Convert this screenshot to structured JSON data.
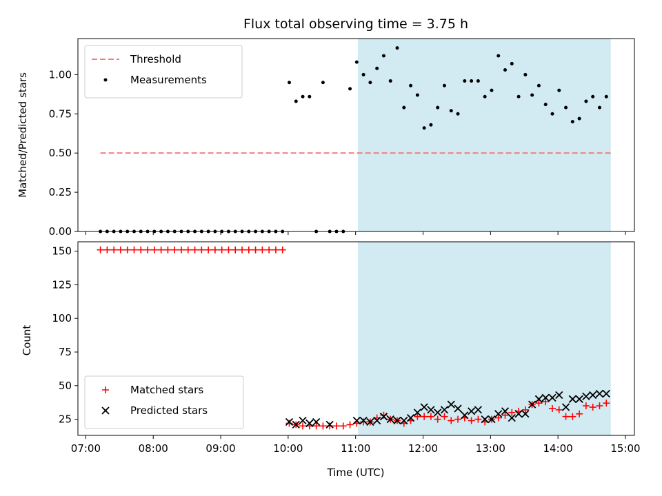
{
  "chart_data": {
    "title": "Flux total observing time = 3.75 h",
    "xlabel": "Time (UTC)",
    "x_ticks": [
      "07:00",
      "08:00",
      "09:00",
      "10:00",
      "11:00",
      "12:00",
      "13:00",
      "14:00",
      "15:00"
    ],
    "xlim": [
      "06:53",
      "15:08"
    ],
    "highlight_span": {
      "start": "11:02",
      "end": "14:47",
      "color": "#add8e6"
    },
    "panels": [
      {
        "type": "scatter",
        "ylabel": "Matched/Predicted stars",
        "ylim": [
          0,
          1.23
        ],
        "y_ticks": [
          "0.00",
          "0.25",
          "0.50",
          "0.75",
          "1.00"
        ],
        "legend_position": "top-left",
        "threshold": {
          "name": "Threshold",
          "value": 0.5,
          "x_start": "07:13",
          "x_end": "14:47",
          "color": "#f08080",
          "style": "dashed"
        },
        "series": [
          {
            "name": "Measurements",
            "color": "#000000",
            "marker": "dot",
            "x": [
              "07:13",
              "07:19",
              "07:25",
              "07:31",
              "07:37",
              "07:43",
              "07:49",
              "07:55",
              "08:01",
              "08:07",
              "08:13",
              "08:19",
              "08:25",
              "08:31",
              "08:37",
              "08:43",
              "08:49",
              "08:55",
              "09:01",
              "09:07",
              "09:13",
              "09:19",
              "09:25",
              "09:31",
              "09:37",
              "09:43",
              "09:49",
              "09:55",
              "10:01",
              "10:07",
              "10:13",
              "10:19",
              "10:25",
              "10:31",
              "10:37",
              "10:43",
              "10:49",
              "10:55",
              "11:01",
              "11:07",
              "11:13",
              "11:19",
              "11:25",
              "11:31",
              "11:37",
              "11:43",
              "11:49",
              "11:55",
              "12:01",
              "12:07",
              "12:13",
              "12:19",
              "12:25",
              "12:31",
              "12:37",
              "12:43",
              "12:49",
              "12:55",
              "13:01",
              "13:07",
              "13:13",
              "13:19",
              "13:25",
              "13:31",
              "13:37",
              "13:43",
              "13:49",
              "13:55",
              "14:01",
              "14:07",
              "14:13",
              "14:19",
              "14:25",
              "14:31",
              "14:37",
              "14:43"
            ],
            "y": [
              0,
              0,
              0,
              0,
              0,
              0,
              0,
              0,
              0,
              0,
              0,
              0,
              0,
              0,
              0,
              0,
              0,
              0,
              0,
              0,
              0,
              0,
              0,
              0,
              0,
              0,
              0,
              0,
              0.95,
              0.83,
              0.86,
              0.86,
              0,
              0.95,
              0,
              0,
              0,
              0.91,
              1.08,
              1.0,
              0.95,
              1.04,
              1.12,
              0.96,
              1.17,
              0.79,
              0.93,
              0.87,
              0.66,
              0.68,
              0.79,
              0.93,
              0.77,
              0.75,
              0.96,
              0.96,
              0.96,
              0.86,
              0.9,
              1.12,
              1.03,
              1.07,
              0.86,
              1.0,
              0.87,
              0.93,
              0.81,
              0.75,
              0.9,
              0.79,
              0.7,
              0.72,
              0.83,
              0.86,
              0.79,
              0.86
            ]
          }
        ]
      },
      {
        "type": "scatter",
        "ylabel": "Count",
        "ylim": [
          13,
          157
        ],
        "y_ticks": [
          "25",
          "50",
          "75",
          "100",
          "125",
          "150"
        ],
        "legend_position": "bottom-left",
        "series": [
          {
            "name": "Matched stars",
            "color": "#ff0000",
            "marker": "plus",
            "x": [
              "07:13",
              "07:19",
              "07:25",
              "07:31",
              "07:37",
              "07:43",
              "07:49",
              "07:55",
              "08:01",
              "08:07",
              "08:13",
              "08:19",
              "08:25",
              "08:31",
              "08:37",
              "08:43",
              "08:49",
              "08:55",
              "09:01",
              "09:07",
              "09:13",
              "09:19",
              "09:25",
              "09:31",
              "09:37",
              "09:43",
              "09:49",
              "09:55",
              "10:01",
              "10:07",
              "10:13",
              "10:19",
              "10:25",
              "10:31",
              "10:37",
              "10:43",
              "10:49",
              "10:55",
              "11:01",
              "11:07",
              "11:13",
              "11:19",
              "11:25",
              "11:31",
              "11:37",
              "11:43",
              "11:49",
              "11:55",
              "12:01",
              "12:07",
              "12:13",
              "12:19",
              "12:25",
              "12:31",
              "12:37",
              "12:43",
              "12:49",
              "12:55",
              "13:01",
              "13:07",
              "13:13",
              "13:19",
              "13:25",
              "13:31",
              "13:37",
              "13:43",
              "13:49",
              "13:55",
              "14:01",
              "14:07",
              "14:13",
              "14:19",
              "14:25",
              "14:31",
              "14:37",
              "14:43"
            ],
            "y": [
              151,
              151,
              151,
              151,
              151,
              151,
              151,
              151,
              151,
              151,
              151,
              151,
              151,
              151,
              151,
              151,
              151,
              151,
              151,
              151,
              151,
              151,
              151,
              151,
              151,
              151,
              151,
              151,
              22,
              21,
              20,
              20,
              20,
              20,
              20,
              20,
              20,
              21,
              22,
              23,
              23,
              26,
              28,
              25,
              24,
              22,
              24,
              27,
              27,
              27,
              25,
              27,
              24,
              25,
              26,
              24,
              25,
              23,
              25,
              26,
              28,
              30,
              31,
              32,
              36,
              37,
              38,
              33,
              32,
              27,
              27,
              29,
              35,
              34,
              35,
              37
            ]
          },
          {
            "name": "Predicted stars",
            "color": "#000000",
            "marker": "x",
            "x": [
              "10:01",
              "10:07",
              "10:13",
              "10:19",
              "10:25",
              "10:37",
              "11:01",
              "11:07",
              "11:13",
              "11:19",
              "11:25",
              "11:31",
              "11:37",
              "11:43",
              "11:49",
              "11:55",
              "12:01",
              "12:07",
              "12:13",
              "12:19",
              "12:25",
              "12:31",
              "12:37",
              "12:43",
              "12:49",
              "12:55",
              "13:01",
              "13:07",
              "13:13",
              "13:19",
              "13:25",
              "13:31",
              "13:37",
              "13:43",
              "13:49",
              "13:55",
              "14:01",
              "14:07",
              "14:13",
              "14:19",
              "14:25",
              "14:31",
              "14:37",
              "14:43"
            ],
            "y": [
              23,
              21,
              24,
              22,
              23,
              21,
              24,
              24,
              23,
              24,
              27,
              25,
              24,
              24,
              26,
              30,
              34,
              32,
              30,
              32,
              36,
              33,
              28,
              31,
              32,
              25,
              25,
              29,
              31,
              26,
              29,
              29,
              36,
              40,
              41,
              41,
              43,
              34,
              40,
              40,
              42,
              43,
              44,
              44
            ]
          }
        ]
      }
    ]
  }
}
